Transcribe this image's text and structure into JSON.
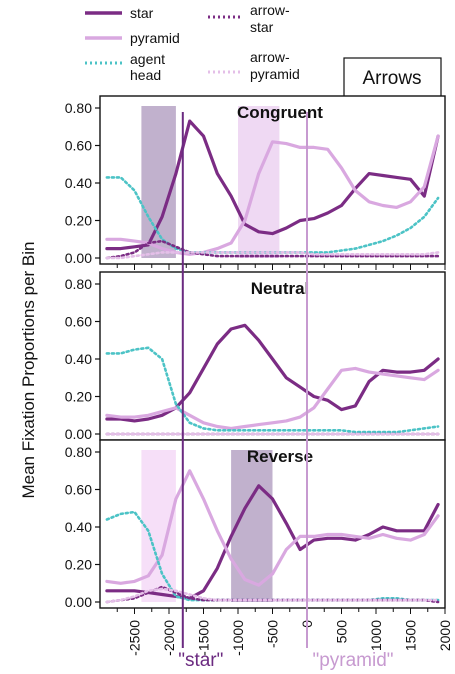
{
  "legend": {
    "items": [
      {
        "key": "star",
        "lines": [
          "star"
        ],
        "color": "#7b2c84",
        "dash": "solid"
      },
      {
        "key": "pyramid",
        "lines": [
          "pyramid"
        ],
        "color": "#d9a8e0",
        "dash": "solid"
      },
      {
        "key": "agent_head",
        "lines": [
          "agent",
          "head"
        ],
        "color": "#4cc3c6",
        "dash": "dotted"
      },
      {
        "key": "arrow_star",
        "lines": [
          "arrow-",
          "star"
        ],
        "color": "#7b2c84",
        "dash": "dotted"
      },
      {
        "key": "arrow_pyramid",
        "lines": [
          "arrow-",
          "pyramid"
        ],
        "color": "#e4bfe8",
        "dash": "dotted"
      }
    ]
  },
  "condition_box": {
    "label": "Arrows"
  },
  "y_axis_label": "Mean Fixation Proportions per Bin",
  "markers": {
    "star_label": "\"star\"",
    "pyramid_label": "\"pyramid\"",
    "star_x": -1800,
    "pyramid_x": 0,
    "star_color": "#6b2a80",
    "pyramid_color": "#c79ad0"
  },
  "chart_data": {
    "type": "line",
    "xlim": [
      -3000,
      2000
    ],
    "ylim": [
      0,
      0.8
    ],
    "x_ticks": [
      -2500,
      -2000,
      -1500,
      -1000,
      -500,
      0,
      500,
      1000,
      1500,
      2000
    ],
    "x_tick_labels": [
      "-2500",
      "-2000",
      "-1500",
      "-1000",
      "-500",
      "0",
      "500",
      "1000",
      "1500",
      "2000"
    ],
    "y_ticks": [
      0,
      0.2,
      0.4,
      0.6,
      0.8
    ],
    "y_tick_labels": [
      "0.00",
      "0.20",
      "0.40",
      "0.60",
      "0.80"
    ],
    "panels": [
      {
        "title": "Congruent",
        "shaded_regions": [
          {
            "x0": -2400,
            "x1": -1900,
            "color": "#b6a3c4"
          },
          {
            "x0": -1000,
            "x1": -400,
            "color": "#ecd2f1"
          }
        ],
        "series": [
          {
            "name": "star",
            "x": [
              -2900,
              -2700,
              -2500,
              -2300,
              -2100,
              -1900,
              -1700,
              -1500,
              -1300,
              -1100,
              -900,
              -700,
              -500,
              -300,
              -100,
              100,
              300,
              500,
              700,
              900,
              1100,
              1300,
              1500,
              1700,
              1900
            ],
            "y": [
              0.05,
              0.05,
              0.06,
              0.07,
              0.22,
              0.45,
              0.73,
              0.65,
              0.45,
              0.33,
              0.18,
              0.14,
              0.13,
              0.16,
              0.2,
              0.21,
              0.24,
              0.28,
              0.37,
              0.45,
              0.44,
              0.43,
              0.42,
              0.33,
              0.65
            ]
          },
          {
            "name": "pyramid",
            "x": [
              -2900,
              -2700,
              -2500,
              -2300,
              -2100,
              -1900,
              -1700,
              -1500,
              -1300,
              -1100,
              -900,
              -700,
              -500,
              -300,
              -100,
              100,
              300,
              500,
              700,
              900,
              1100,
              1300,
              1500,
              1700,
              1900
            ],
            "y": [
              0.1,
              0.1,
              0.09,
              0.08,
              0.05,
              0.03,
              0.02,
              0.03,
              0.05,
              0.08,
              0.2,
              0.45,
              0.62,
              0.61,
              0.59,
              0.59,
              0.58,
              0.48,
              0.36,
              0.3,
              0.28,
              0.27,
              0.3,
              0.38,
              0.65
            ]
          },
          {
            "name": "agent head",
            "x": [
              -2900,
              -2700,
              -2500,
              -2300,
              -2100,
              -1900,
              -1700,
              -1500,
              -1300,
              -1100,
              -900,
              -700,
              -500,
              -300,
              -100,
              100,
              300,
              500,
              700,
              900,
              1100,
              1300,
              1500,
              1700,
              1900
            ],
            "y": [
              0.43,
              0.43,
              0.36,
              0.22,
              0.1,
              0.05,
              0.03,
              0.03,
              0.03,
              0.03,
              0.03,
              0.03,
              0.03,
              0.03,
              0.03,
              0.03,
              0.03,
              0.04,
              0.05,
              0.07,
              0.09,
              0.12,
              0.16,
              0.22,
              0.32
            ]
          },
          {
            "name": "arrow-star",
            "x": [
              -2900,
              -2700,
              -2500,
              -2300,
              -2100,
              -1900,
              -1700,
              -1500,
              -1300,
              -1100,
              -900,
              -700,
              -500,
              -300,
              -100,
              100,
              300,
              500,
              700,
              900,
              1100,
              1300,
              1500,
              1700,
              1900
            ],
            "y": [
              0.0,
              0.01,
              0.03,
              0.08,
              0.09,
              0.06,
              0.03,
              0.02,
              0.01,
              0.01,
              0.01,
              0.01,
              0.01,
              0.01,
              0.01,
              0.01,
              0.01,
              0.01,
              0.01,
              0.01,
              0.01,
              0.01,
              0.01,
              0.01,
              0.01
            ]
          },
          {
            "name": "arrow-pyramid",
            "x": [
              -2900,
              -2700,
              -2500,
              -2300,
              -2100,
              -1900,
              -1700,
              -1500,
              -1300,
              -1100,
              -900,
              -700,
              -500,
              -300,
              -100,
              100,
              300,
              500,
              700,
              900,
              1100,
              1300,
              1500,
              1700,
              1900
            ],
            "y": [
              0.0,
              0.0,
              0.01,
              0.02,
              0.03,
              0.03,
              0.03,
              0.03,
              0.03,
              0.03,
              0.03,
              0.03,
              0.03,
              0.03,
              0.03,
              0.02,
              0.02,
              0.02,
              0.02,
              0.02,
              0.02,
              0.02,
              0.02,
              0.02,
              0.03
            ]
          }
        ]
      },
      {
        "title": "Neutral",
        "shaded_regions": [],
        "series": [
          {
            "name": "star",
            "x": [
              -2900,
              -2700,
              -2500,
              -2300,
              -2100,
              -1900,
              -1700,
              -1500,
              -1300,
              -1100,
              -900,
              -700,
              -500,
              -300,
              -100,
              100,
              300,
              500,
              700,
              900,
              1100,
              1300,
              1500,
              1700,
              1900
            ],
            "y": [
              0.08,
              0.08,
              0.07,
              0.08,
              0.1,
              0.14,
              0.22,
              0.35,
              0.48,
              0.56,
              0.58,
              0.5,
              0.4,
              0.3,
              0.25,
              0.2,
              0.18,
              0.13,
              0.15,
              0.28,
              0.34,
              0.33,
              0.33,
              0.34,
              0.4
            ]
          },
          {
            "name": "pyramid",
            "x": [
              -2900,
              -2700,
              -2500,
              -2300,
              -2100,
              -1900,
              -1700,
              -1500,
              -1300,
              -1100,
              -900,
              -700,
              -500,
              -300,
              -100,
              100,
              300,
              500,
              700,
              900,
              1100,
              1300,
              1500,
              1700,
              1900
            ],
            "y": [
              0.1,
              0.09,
              0.09,
              0.1,
              0.12,
              0.14,
              0.1,
              0.06,
              0.04,
              0.03,
              0.04,
              0.05,
              0.06,
              0.07,
              0.09,
              0.14,
              0.24,
              0.34,
              0.35,
              0.33,
              0.32,
              0.31,
              0.3,
              0.29,
              0.34
            ]
          },
          {
            "name": "agent head",
            "x": [
              -2900,
              -2700,
              -2500,
              -2300,
              -2100,
              -1900,
              -1700,
              -1500,
              -1300,
              -1100,
              -900,
              -700,
              -500,
              -300,
              -100,
              100,
              300,
              500,
              700,
              900,
              1100,
              1300,
              1500,
              1700,
              1900
            ],
            "y": [
              0.43,
              0.43,
              0.45,
              0.46,
              0.4,
              0.16,
              0.06,
              0.03,
              0.02,
              0.02,
              0.02,
              0.02,
              0.02,
              0.02,
              0.02,
              0.02,
              0.02,
              0.02,
              0.01,
              0.01,
              0.01,
              0.01,
              0.02,
              0.03,
              0.04
            ]
          },
          {
            "name": "arrow-star",
            "x": [
              -2900,
              -2700,
              -2500,
              -2300,
              -2100,
              -1900,
              -1700,
              -1500,
              -1300,
              -1100,
              -900,
              -700,
              -500,
              -300,
              -100,
              100,
              300,
              500,
              700,
              900,
              1100,
              1300,
              1500,
              1700,
              1900
            ],
            "y": [
              0.0,
              0.0,
              0.0,
              0.0,
              0.0,
              0.0,
              0.0,
              0.0,
              0.0,
              0.0,
              0.0,
              0.0,
              0.0,
              0.0,
              0.0,
              0.0,
              0.0,
              0.0,
              0.0,
              0.0,
              0.0,
              0.0,
              0.0,
              0.0,
              0.0
            ]
          },
          {
            "name": "arrow-pyramid",
            "x": [
              -2900,
              -2700,
              -2500,
              -2300,
              -2100,
              -1900,
              -1700,
              -1500,
              -1300,
              -1100,
              -900,
              -700,
              -500,
              -300,
              -100,
              100,
              300,
              500,
              700,
              900,
              1100,
              1300,
              1500,
              1700,
              1900
            ],
            "y": [
              0.0,
              0.0,
              0.0,
              0.0,
              0.0,
              0.0,
              0.0,
              0.0,
              0.0,
              0.0,
              0.0,
              0.0,
              0.0,
              0.0,
              0.0,
              0.0,
              0.0,
              0.0,
              0.0,
              0.0,
              0.0,
              0.0,
              0.0,
              0.0,
              0.0
            ]
          }
        ]
      },
      {
        "title": "Reverse",
        "shaded_regions": [
          {
            "x0": -2400,
            "x1": -1900,
            "color": "#f5d9f7"
          },
          {
            "x0": -1100,
            "x1": -500,
            "color": "#b6a3c4"
          }
        ],
        "series": [
          {
            "name": "star",
            "x": [
              -2900,
              -2700,
              -2500,
              -2300,
              -2100,
              -1900,
              -1700,
              -1500,
              -1300,
              -1100,
              -900,
              -700,
              -500,
              -300,
              -100,
              100,
              300,
              500,
              700,
              900,
              1100,
              1300,
              1500,
              1700,
              1900
            ],
            "y": [
              0.06,
              0.06,
              0.06,
              0.05,
              0.04,
              0.03,
              0.02,
              0.06,
              0.18,
              0.35,
              0.5,
              0.62,
              0.55,
              0.42,
              0.28,
              0.33,
              0.34,
              0.34,
              0.33,
              0.36,
              0.4,
              0.38,
              0.38,
              0.38,
              0.52
            ]
          },
          {
            "name": "pyramid",
            "x": [
              -2900,
              -2700,
              -2500,
              -2300,
              -2100,
              -1900,
              -1700,
              -1500,
              -1300,
              -1100,
              -900,
              -700,
              -500,
              -300,
              -100,
              100,
              300,
              500,
              700,
              900,
              1100,
              1300,
              1500,
              1700,
              1900
            ],
            "y": [
              0.11,
              0.1,
              0.11,
              0.14,
              0.25,
              0.55,
              0.7,
              0.55,
              0.38,
              0.23,
              0.12,
              0.09,
              0.15,
              0.28,
              0.35,
              0.35,
              0.36,
              0.36,
              0.35,
              0.34,
              0.36,
              0.34,
              0.33,
              0.36,
              0.46
            ]
          },
          {
            "name": "agent head",
            "x": [
              -2900,
              -2700,
              -2500,
              -2300,
              -2100,
              -1900,
              -1700,
              -1500,
              -1300,
              -1100,
              -900,
              -700,
              -500,
              -300,
              -100,
              100,
              300,
              500,
              700,
              900,
              1100,
              1300,
              1500,
              1700,
              1900
            ],
            "y": [
              0.44,
              0.47,
              0.48,
              0.38,
              0.15,
              0.03,
              0.01,
              0.01,
              0.01,
              0.01,
              0.01,
              0.01,
              0.01,
              0.01,
              0.01,
              0.01,
              0.01,
              0.01,
              0.01,
              0.01,
              0.02,
              0.02,
              0.01,
              0.01,
              0.01
            ]
          },
          {
            "name": "arrow-star",
            "x": [
              -2900,
              -2700,
              -2500,
              -2300,
              -2100,
              -1900,
              -1700,
              -1500,
              -1300,
              -1100,
              -900,
              -700,
              -500,
              -300,
              -100,
              100,
              300,
              500,
              700,
              900,
              1100,
              1300,
              1500,
              1700,
              1900
            ],
            "y": [
              0.0,
              0.01,
              0.02,
              0.05,
              0.08,
              0.05,
              0.02,
              0.01,
              0.01,
              0.01,
              0.01,
              0.01,
              0.01,
              0.01,
              0.01,
              0.01,
              0.01,
              0.01,
              0.01,
              0.01,
              0.01,
              0.01,
              0.01,
              0.01,
              0.0
            ]
          },
          {
            "name": "arrow-pyramid",
            "x": [
              -2900,
              -2700,
              -2500,
              -2300,
              -2100,
              -1900,
              -1700,
              -1500,
              -1300,
              -1100,
              -900,
              -700,
              -500,
              -300,
              -100,
              100,
              300,
              500,
              700,
              900,
              1100,
              1300,
              1500,
              1700,
              1900
            ],
            "y": [
              0.0,
              0.01,
              0.03,
              0.06,
              0.07,
              0.06,
              0.04,
              0.02,
              0.01,
              0.01,
              0.01,
              0.01,
              0.01,
              0.01,
              0.01,
              0.01,
              0.01,
              0.01,
              0.01,
              0.01,
              0.01,
              0.01,
              0.01,
              0.01,
              0.01
            ]
          }
        ]
      }
    ]
  }
}
